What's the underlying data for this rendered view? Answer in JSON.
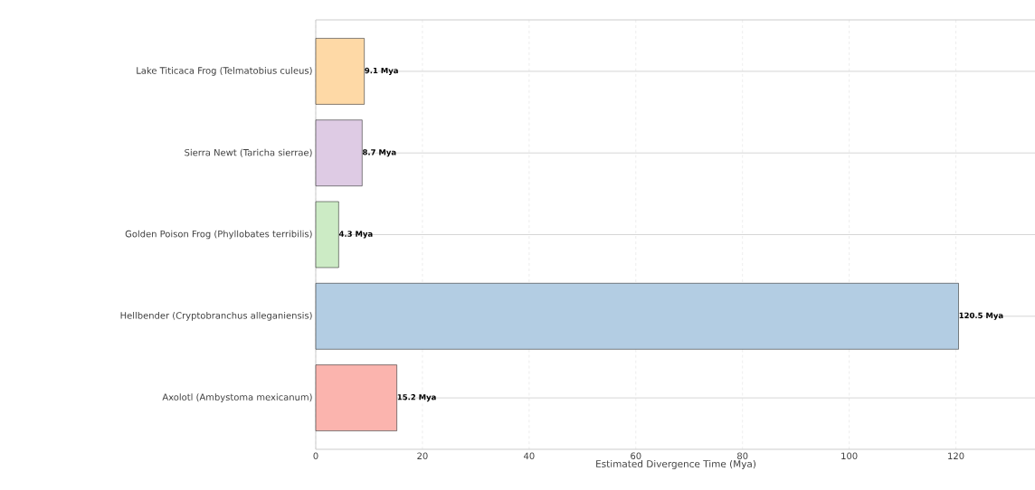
{
  "chart_data": {
    "type": "bar",
    "orientation": "horizontal",
    "categories": [
      "Lake Titicaca Frog (Telmatobius culeus)",
      "Sierra Newt (Taricha sierrae)",
      "Golden Poison Frog (Phyllobates terribilis)",
      "Hellbender (Cryptobranchus alleganiensis)",
      "Axolotl (Ambystoma mexicanum)"
    ],
    "values": [
      9.1,
      8.7,
      4.3,
      120.5,
      15.2
    ],
    "colors": [
      "#fed9a6",
      "#decbe4",
      "#ccebc5",
      "#b3cde3",
      "#fbb4ae"
    ],
    "value_labels": [
      "9.1 Mya",
      "8.7 Mya",
      "4.3 Mya",
      "120.5 Mya",
      "15.2 Mya"
    ],
    "xlabel": "Estimated Divergence Time (Mya)",
    "xlim": [
      0,
      135
    ],
    "xticks": [
      0,
      20,
      40,
      60,
      80,
      100,
      120
    ],
    "grid": true
  }
}
